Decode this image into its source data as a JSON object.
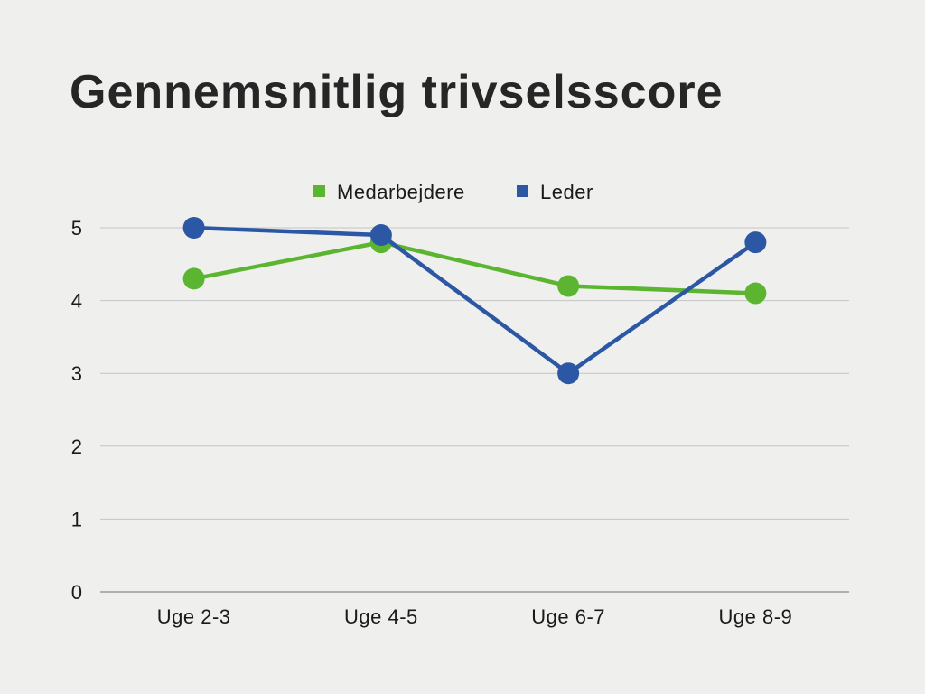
{
  "chart_data": {
    "type": "line",
    "title": "Gennemsnitlig trivselsscore",
    "categories": [
      "Uge 2-3",
      "Uge 4-5",
      "Uge 6-7",
      "Uge 8-9"
    ],
    "series": [
      {
        "name": "Medarbejdere",
        "color": "#5cb531",
        "values": [
          4.3,
          4.8,
          4.2,
          4.1
        ]
      },
      {
        "name": "Leder",
        "color": "#2b57a4",
        "values": [
          5.0,
          4.9,
          3.0,
          4.8
        ]
      }
    ],
    "ylim": [
      0,
      5
    ],
    "yticks": [
      0,
      1,
      2,
      3,
      4,
      5
    ],
    "xlabel": "",
    "ylabel": "",
    "grid": true,
    "legend": "top-center"
  }
}
